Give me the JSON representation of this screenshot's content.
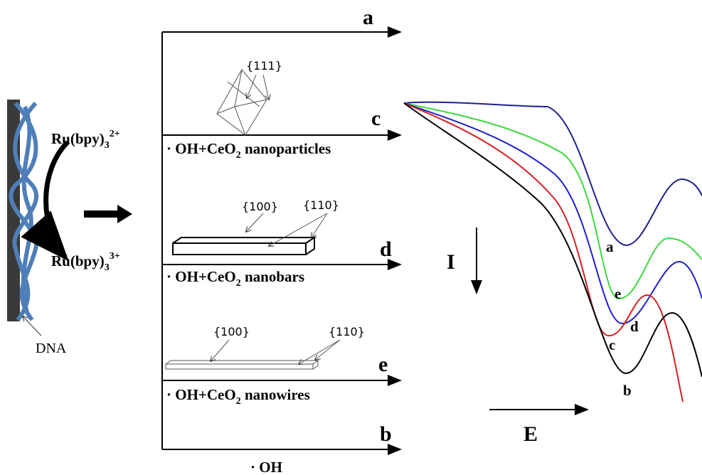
{
  "electrode": {
    "species_top": [
      "Ru(bpy)",
      "3",
      "2+"
    ],
    "species_bottom": [
      "Ru(bpy)",
      "3",
      "3+"
    ],
    "dna_label": "DNA"
  },
  "pathways": [
    {
      "letter": "a"
    },
    {
      "letter": "c",
      "facets": [
        "{111}"
      ],
      "label": [
        "· OH+CeO",
        "2",
        " nanoparticles"
      ]
    },
    {
      "letter": "d",
      "facets": [
        "{100}",
        "{110}"
      ],
      "label": [
        "· OH+CeO",
        "2",
        " nanobars"
      ]
    },
    {
      "letter": "e",
      "facets": [
        "{100}",
        "{110}"
      ],
      "label": [
        "· OH+CeO",
        "2",
        " nanowires"
      ]
    },
    {
      "letter": "b",
      "label": [
        "· OH"
      ]
    }
  ],
  "voltammogram": {
    "current_axis": "I",
    "potential_axis": "E",
    "curve_labels": [
      "a",
      "e",
      "d",
      "c",
      "b"
    ]
  }
}
